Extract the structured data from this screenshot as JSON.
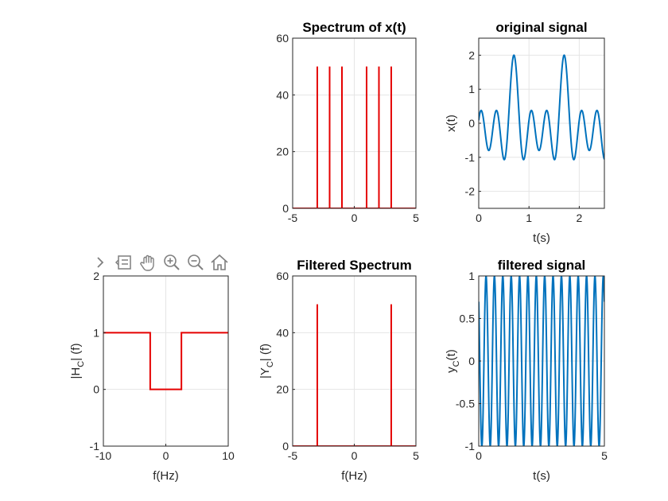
{
  "toolbar": {
    "icons": [
      "chevron-right-icon",
      "data-tips-icon",
      "pan-hand-icon",
      "zoom-in-icon",
      "zoom-out-icon",
      "home-icon"
    ]
  },
  "colors": {
    "spectrum_line": "#e50000",
    "signal_line": "#0072bd",
    "grid": "#e5e5e5"
  },
  "chart_data": [
    {
      "id": "spectrum_x",
      "type": "stem",
      "title": "Spectrum of x(t)",
      "xlabel": "",
      "ylabel": "",
      "xlim": [
        -5,
        5
      ],
      "ylim": [
        0,
        60
      ],
      "xticks": [
        -5,
        0,
        5
      ],
      "yticks": [
        0,
        20,
        40,
        60
      ],
      "grid": true,
      "x": [
        -3,
        -2,
        -1,
        1,
        2,
        3
      ],
      "values": [
        50,
        50,
        50,
        50,
        50,
        50
      ]
    },
    {
      "id": "original_signal",
      "type": "line",
      "title": "original signal",
      "xlabel": "t(s)",
      "ylabel": "x(t)",
      "xlim": [
        0,
        2.5
      ],
      "ylim": [
        -2.5,
        2.5
      ],
      "xticks": [
        0,
        1,
        2
      ],
      "yticks": [
        -2,
        -1,
        0,
        1,
        2
      ],
      "grid": true,
      "function": "cos(2πt)+cos(4πt)+cos(6πt) (visible approximation)"
    },
    {
      "id": "filter_response",
      "type": "line",
      "title": "",
      "xlabel": "f(Hz)",
      "ylabel_main": "|H",
      "ylabel_sub": "C",
      "ylabel_tail": "| (f)",
      "xlim": [
        -10,
        10
      ],
      "ylim": [
        -1,
        2
      ],
      "xticks": [
        -10,
        0,
        10
      ],
      "yticks": [
        -1,
        0,
        1,
        2
      ],
      "grid": true,
      "x": [
        -10,
        -2.5,
        -2.5,
        2.5,
        2.5,
        10
      ],
      "y": [
        1,
        1,
        0,
        0,
        1,
        1
      ]
    },
    {
      "id": "filtered_spectrum",
      "type": "stem",
      "title": "Filtered Spectrum",
      "xlabel": "f(Hz)",
      "ylabel_main": "|Y",
      "ylabel_sub": "C",
      "ylabel_tail": "| (f)",
      "xlim": [
        -5,
        5
      ],
      "ylim": [
        0,
        60
      ],
      "xticks": [
        -5,
        0,
        5
      ],
      "yticks": [
        0,
        20,
        40,
        60
      ],
      "grid": true,
      "x": [
        -3,
        3
      ],
      "values": [
        50,
        50
      ]
    },
    {
      "id": "filtered_signal",
      "type": "line",
      "title": "filtered signal",
      "xlabel": "t(s)",
      "ylabel_main": "y",
      "ylabel_sub": "C",
      "ylabel_tail": "(t)",
      "xlim": [
        0,
        5
      ],
      "ylim": [
        -1,
        1
      ],
      "xticks": [
        0,
        5
      ],
      "yticks": [
        -1,
        -0.5,
        0,
        0.5,
        1
      ],
      "grid": true,
      "function": "cos(6πt) (3 Hz cosine)"
    }
  ]
}
